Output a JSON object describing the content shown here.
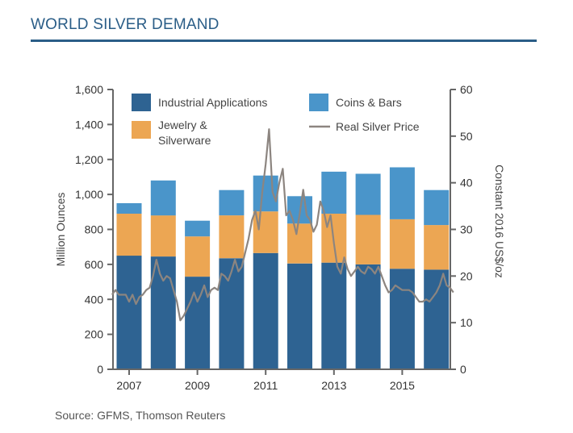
{
  "title": "WORLD SILVER DEMAND",
  "source": "Source: GFMS, Thomson Reuters",
  "colors": {
    "industrial": "#2e6392",
    "jewelry": "#eca653",
    "coins": "#4a95ca",
    "price": "#8c8580",
    "axis": "#666666",
    "title": "#2a5d87"
  },
  "chart_data": {
    "type": "bar",
    "stacked": true,
    "categories": [
      "2007",
      "2008",
      "2009",
      "2010",
      "2011",
      "2012",
      "2013",
      "2014",
      "2015",
      "2016"
    ],
    "x_tick_labels": [
      "2007",
      "2009",
      "2011",
      "2013",
      "2015"
    ],
    "series": [
      {
        "name": "Industrial Applications",
        "values": [
          650,
          645,
          530,
          635,
          665,
          605,
          610,
          600,
          575,
          570
        ]
      },
      {
        "name": "Jewelry & Silverware",
        "values": [
          240,
          235,
          230,
          245,
          238,
          228,
          280,
          283,
          283,
          255
        ]
      },
      {
        "name": "Coins & Bars",
        "values": [
          60,
          200,
          90,
          145,
          205,
          157,
          240,
          235,
          297,
          200
        ]
      }
    ],
    "line_series": {
      "name": "Real Silver Price",
      "axis": "right",
      "x": [
        2006.5,
        2006.6,
        2006.7,
        2006.8,
        2006.9,
        2007.0,
        2007.1,
        2007.2,
        2007.3,
        2007.4,
        2007.5,
        2007.6,
        2007.7,
        2007.8,
        2007.9,
        2008.0,
        2008.1,
        2008.2,
        2008.3,
        2008.4,
        2008.5,
        2008.6,
        2008.7,
        2008.8,
        2008.9,
        2009.0,
        2009.1,
        2009.2,
        2009.3,
        2009.4,
        2009.5,
        2009.6,
        2009.7,
        2009.8,
        2009.9,
        2010.0,
        2010.1,
        2010.2,
        2010.3,
        2010.4,
        2010.5,
        2010.6,
        2010.7,
        2010.8,
        2010.9,
        2011.0,
        2011.1,
        2011.2,
        2011.3,
        2011.4,
        2011.5,
        2011.6,
        2011.7,
        2011.8,
        2011.9,
        2012.0,
        2012.1,
        2012.2,
        2012.3,
        2012.4,
        2012.5,
        2012.6,
        2012.7,
        2012.8,
        2012.9,
        2013.0,
        2013.1,
        2013.2,
        2013.3,
        2013.4,
        2013.5,
        2013.6,
        2013.7,
        2013.8,
        2013.9,
        2014.0,
        2014.1,
        2014.2,
        2014.3,
        2014.4,
        2014.5,
        2014.6,
        2014.7,
        2014.8,
        2014.9,
        2015.0,
        2015.1,
        2015.2,
        2015.3,
        2015.4,
        2015.5,
        2015.6,
        2015.7,
        2015.8,
        2015.9,
        2016.0,
        2016.1,
        2016.2,
        2016.3,
        2016.4,
        2016.5
      ],
      "values": [
        16.0,
        17.0,
        16.0,
        16.0,
        16.0,
        14.5,
        16.0,
        14.0,
        15.5,
        16.0,
        17.0,
        17.5,
        20.0,
        23.5,
        20.5,
        19.0,
        20.0,
        19.5,
        17.0,
        14.5,
        10.5,
        11.5,
        13.0,
        14.5,
        16.5,
        14.5,
        16.0,
        18.0,
        15.5,
        17.0,
        17.5,
        17.0,
        20.5,
        20.0,
        19.0,
        21.0,
        23.5,
        21.0,
        22.0,
        25.0,
        28.0,
        32.0,
        34.0,
        30.0,
        38.0,
        44.0,
        51.5,
        38.0,
        36.0,
        40.0,
        43.0,
        33.0,
        34.0,
        32.0,
        29.0,
        33.5,
        38.5,
        33.0,
        32.0,
        29.5,
        31.0,
        36.0,
        34.0,
        30.5,
        33.0,
        27.0,
        22.0,
        20.5,
        24.0,
        21.5,
        20.0,
        21.0,
        22.0,
        21.0,
        20.5,
        22.0,
        21.5,
        20.5,
        22.0,
        20.0,
        18.0,
        16.5,
        17.0,
        18.0,
        17.5,
        17.0,
        17.0,
        17.0,
        16.5,
        15.5,
        14.5,
        14.5,
        15.0,
        14.5,
        15.5,
        16.5,
        18.0,
        20.5,
        18.0,
        17.5,
        16.5
      ]
    },
    "xlabel": "",
    "ylabel": "Million Ounces",
    "ylabel_right": "Constant 2016 US$/oz",
    "ylim": [
      0,
      1600
    ],
    "yticks": [
      0,
      200,
      400,
      600,
      800,
      1000,
      1200,
      1400,
      1600
    ],
    "ytick_labels": [
      "0",
      "200",
      "400",
      "600",
      "800",
      "1,000",
      "1,200",
      "1,400",
      "1,600"
    ],
    "ylim_right": [
      0,
      60
    ],
    "yticks_right": [
      "0",
      "10",
      "20",
      "30",
      "40",
      "50",
      "60"
    ],
    "legend": [
      {
        "label": "Industrial Applications",
        "kind": "box",
        "series": 0
      },
      {
        "label": "Coins & Bars",
        "kind": "box",
        "series": 2
      },
      {
        "label_lines": [
          "Jewelry &",
          "Silverware"
        ],
        "kind": "box",
        "series": 1
      },
      {
        "label": "Real Silver Price",
        "kind": "line"
      }
    ],
    "legend_position": "top",
    "grid": false
  }
}
